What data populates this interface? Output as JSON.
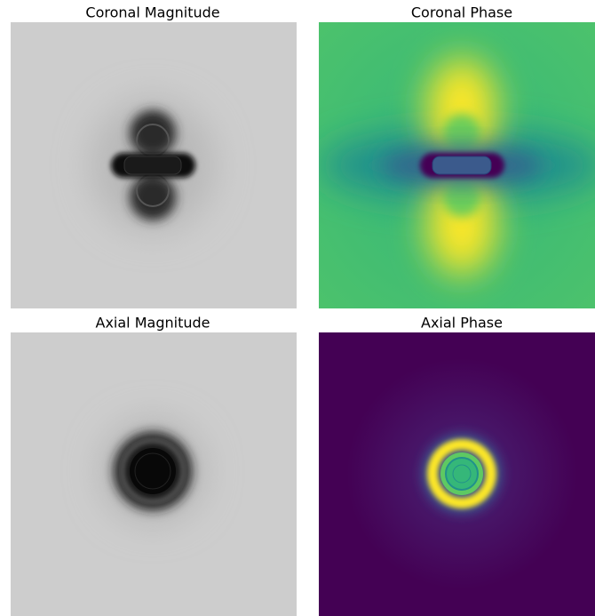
{
  "panels": [
    {
      "title": "Coronal Magnitude"
    },
    {
      "title": "Coronal Phase"
    },
    {
      "title": "Axial Magnitude"
    },
    {
      "title": "Axial Phase"
    }
  ]
}
